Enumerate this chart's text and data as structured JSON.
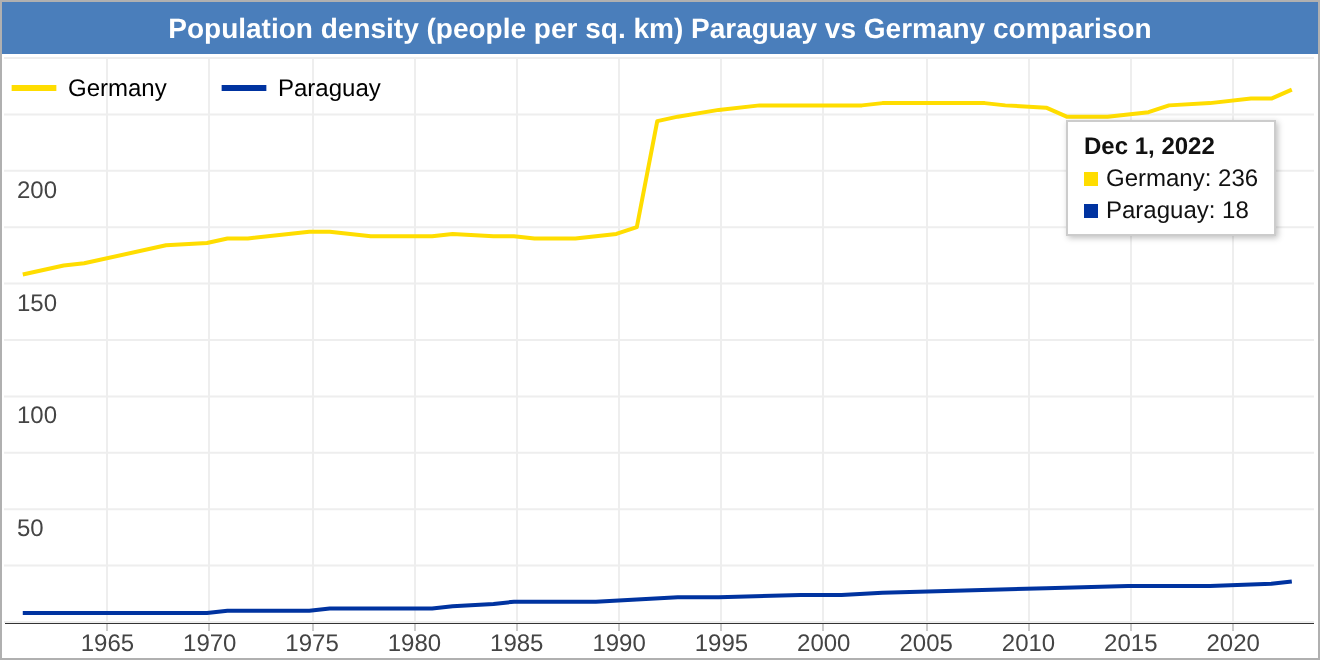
{
  "chart_data": {
    "type": "line",
    "title": "Population density (people per sq. km) Paraguay vs Germany comparison",
    "xlim": [
      "1960-01-01",
      "2024-01-01"
    ],
    "xticks": [
      "1965",
      "1970",
      "1975",
      "1980",
      "1985",
      "1990",
      "1995",
      "2000",
      "2005",
      "2010",
      "2015",
      "2020"
    ],
    "ylim": [
      0,
      250
    ],
    "yticks": [
      {
        "value": 0,
        "label": null
      },
      {
        "value": 25,
        "label": null
      },
      50,
      {
        "value": 75,
        "label": null
      },
      100,
      {
        "value": 125,
        "label": null
      },
      150,
      {
        "value": 175,
        "label": null
      },
      200,
      {
        "value": 225,
        "label": null
      },
      {
        "value": 250,
        "label": null
      }
    ],
    "grid": true,
    "legend": "top left",
    "marker": "none",
    "line_style": "solid",
    "series": [
      {
        "name": "Germany",
        "color": "#ffdd00",
        "x": [
          "1960-12",
          "1962-12",
          "1963-12",
          "1967-12",
          "1969-12",
          "1970-12",
          "1971-12",
          "1974-12",
          "1975-12",
          "1977-12",
          "1980-12",
          "1981-12",
          "1983-12",
          "1984-12",
          "1985-12",
          "1987-12",
          "1989-12",
          "1990-12",
          "1991-12",
          "1992-12",
          "1994-12",
          "1996-12",
          "2001-12",
          "2002-12",
          "2007-12",
          "2008-12",
          "2010-12",
          "2011-12",
          "2013-12",
          "2015-12",
          "2016-12",
          "2018-12",
          "2020-12",
          "2021-12",
          "2022-12"
        ],
        "values": [
          154,
          158,
          159,
          167,
          168,
          170,
          170,
          173,
          173,
          171,
          171,
          172,
          171,
          171,
          170,
          170,
          172,
          175,
          222,
          224,
          227,
          229,
          229,
          230,
          230,
          229,
          228,
          224,
          224,
          226,
          229,
          230,
          232,
          232,
          236
        ]
      },
      {
        "name": "Paraguay",
        "color": "#0033a0",
        "x": [
          "1960-12",
          "1964-12",
          "1965-12",
          "1969-12",
          "1970-12",
          "1974-12",
          "1975-12",
          "1979-12",
          "1980-12",
          "1981-12",
          "1983-12",
          "1984-12",
          "1988-12",
          "1990-12",
          "1992-12",
          "1994-12",
          "1998-12",
          "2000-12",
          "2002-12",
          "2006-12",
          "2010-12",
          "2014-12",
          "2018-12",
          "2021-12",
          "2022-12"
        ],
        "values": [
          4,
          4,
          4,
          4,
          5,
          5,
          6,
          6,
          6,
          7,
          8,
          9,
          9,
          10,
          11,
          11,
          12,
          12,
          13,
          14,
          15,
          16,
          16,
          17,
          18
        ]
      }
    ],
    "annotations": [
      "Dec 1, 2022",
      "Germany: 236",
      "Paraguay: 18"
    ]
  }
}
